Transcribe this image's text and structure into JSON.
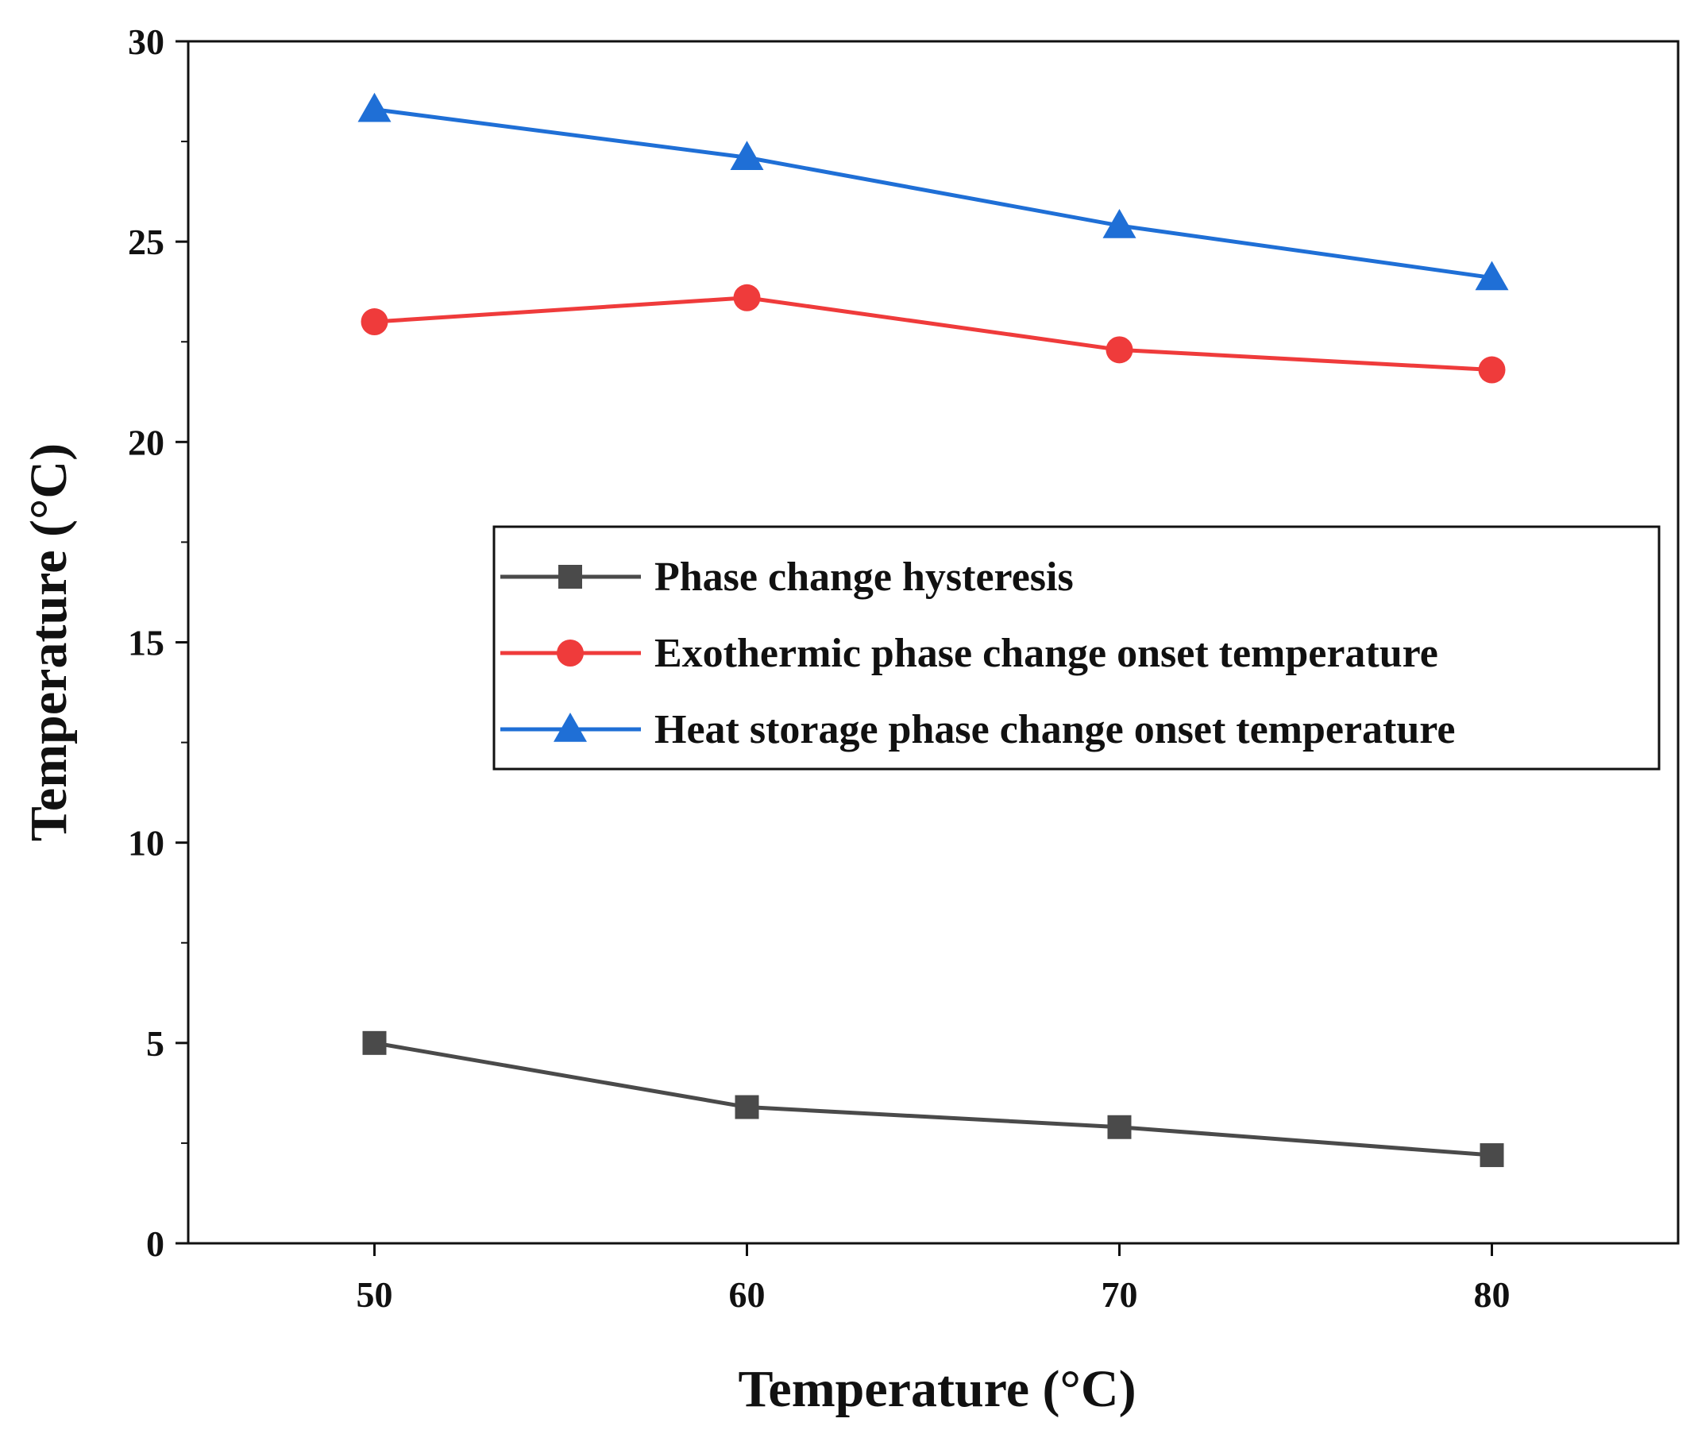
{
  "chart_data": {
    "type": "line",
    "title": "",
    "xlabel": "Temperature (°C)",
    "ylabel": "Temperature (°C)",
    "xlim": [
      45,
      85
    ],
    "ylim": [
      0,
      30
    ],
    "xticks": [
      50,
      60,
      70,
      80
    ],
    "yticks": [
      0,
      5,
      10,
      15,
      20,
      25,
      30
    ],
    "xtick_labels": [
      "50",
      "60",
      "70",
      "80"
    ],
    "ytick_labels": [
      "0",
      "5",
      "10",
      "15",
      "20",
      "25",
      "30"
    ],
    "x": [
      50,
      60,
      70,
      80
    ],
    "grid": false,
    "legend_position": "center-right",
    "series": [
      {
        "name": "Phase change hysteresis",
        "values": [
          5.0,
          3.4,
          2.9,
          2.2
        ],
        "color": "#4a4a4a",
        "marker": "square"
      },
      {
        "name": "Exothermic phase change onset temperature",
        "values": [
          23.0,
          23.6,
          22.3,
          21.8
        ],
        "color": "#ef3b3b",
        "marker": "circle"
      },
      {
        "name": "Heat storage phase change onset temperature",
        "values": [
          28.3,
          27.1,
          25.4,
          24.1
        ],
        "color": "#1f6fd6",
        "marker": "triangle"
      }
    ]
  }
}
